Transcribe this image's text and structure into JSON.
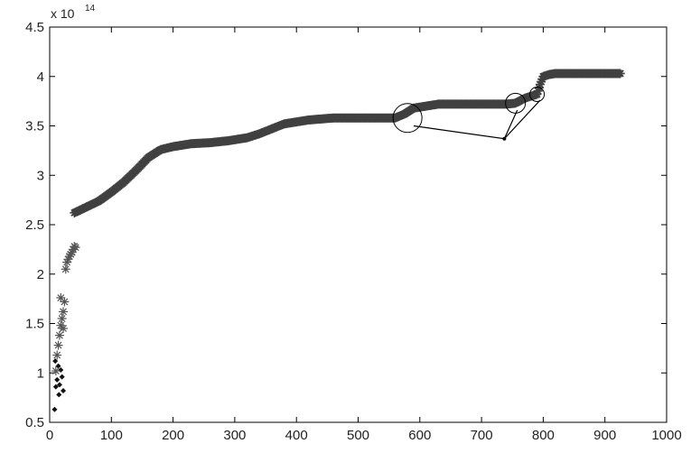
{
  "chart_data": {
    "type": "scatter",
    "title": "",
    "xlabel": "",
    "ylabel": "",
    "xlim": [
      0,
      1000
    ],
    "ylim": [
      0.5,
      4.5
    ],
    "x_ticks": [
      "0",
      "100",
      "200",
      "300",
      "400",
      "500",
      "600",
      "700",
      "800",
      "900",
      "1000"
    ],
    "y_ticks": [
      "0.5",
      "1",
      "1.5",
      "2",
      "2.5",
      "3",
      "3.5",
      "4",
      "4.5"
    ],
    "y_multiplier": {
      "base": "x 10",
      "exponent": "14"
    },
    "grid": false,
    "legend": "none",
    "series": [
      {
        "marker": "dot",
        "color": "#111111",
        "x": [
          8,
          10,
          12,
          14,
          16,
          18,
          20,
          22,
          9,
          15
        ],
        "y": [
          0.63,
          0.86,
          0.93,
          1.07,
          0.88,
          1.03,
          0.96,
          0.82,
          1.12,
          0.78
        ]
      },
      {
        "marker": "star",
        "color": "#555555",
        "x": [
          10,
          12,
          14,
          16,
          18,
          20,
          22,
          24,
          26,
          28,
          30,
          32,
          34,
          36,
          38,
          40,
          42,
          18,
          22
        ],
        "y": [
          1.02,
          1.18,
          1.28,
          1.38,
          1.48,
          1.55,
          1.62,
          1.72,
          2.05,
          2.12,
          2.15,
          2.18,
          2.2,
          2.22,
          2.25,
          2.28,
          2.27,
          1.76,
          1.45
        ]
      },
      {
        "marker": "star-dense",
        "color": "#404040",
        "x": [
          40,
          60,
          80,
          100,
          120,
          140,
          160,
          180,
          200,
          230,
          260,
          290,
          320,
          340,
          360,
          380,
          400,
          420,
          440,
          460,
          480,
          500,
          520,
          540,
          560,
          575,
          590,
          610,
          630,
          660,
          690,
          720,
          740,
          755,
          770,
          780,
          790,
          795,
          800,
          810,
          820,
          850,
          880,
          910,
          925
        ],
        "y": [
          2.62,
          2.68,
          2.74,
          2.83,
          2.93,
          3.05,
          3.18,
          3.26,
          3.29,
          3.32,
          3.33,
          3.35,
          3.38,
          3.42,
          3.47,
          3.52,
          3.54,
          3.56,
          3.57,
          3.58,
          3.58,
          3.58,
          3.58,
          3.58,
          3.58,
          3.62,
          3.68,
          3.7,
          3.72,
          3.72,
          3.72,
          3.72,
          3.72,
          3.73,
          3.78,
          3.8,
          3.82,
          3.92,
          4.0,
          4.02,
          4.03,
          4.03,
          4.03,
          4.03,
          4.03
        ]
      }
    ],
    "annotations": {
      "circles": [
        {
          "x": 580,
          "y": 3.58
        },
        {
          "x": 755,
          "y": 3.73
        },
        {
          "x": 790,
          "y": 3.82
        }
      ],
      "polyline": [
        {
          "x": 590,
          "y": 3.5
        },
        {
          "x": 737,
          "y": 3.37
        },
        {
          "x": 758,
          "y": 3.66
        }
      ],
      "polyline2": [
        {
          "x": 737,
          "y": 3.37
        },
        {
          "x": 795,
          "y": 3.76
        }
      ]
    }
  }
}
